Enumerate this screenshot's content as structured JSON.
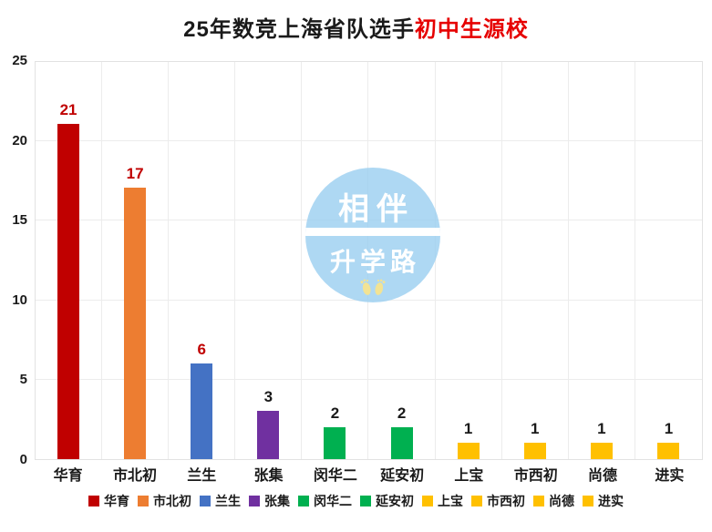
{
  "title": {
    "main": "25年数竞上海省队选手",
    "highlight": "初中生源校",
    "highlight_color": "#e60000"
  },
  "chart_data": {
    "type": "bar",
    "title": "25年数竞上海省队选手初中生源校",
    "categories": [
      "华育",
      "市北初",
      "兰生",
      "张集",
      "闵华二",
      "延安初",
      "上宝",
      "市西初",
      "尚德",
      "进实"
    ],
    "values": [
      21,
      17,
      6,
      3,
      2,
      2,
      1,
      1,
      1,
      1
    ],
    "bar_colors": [
      "#C00000",
      "#ED7D31",
      "#4472C4",
      "#7030A0",
      "#00B050",
      "#00B050",
      "#FFC000",
      "#FFC000",
      "#FFC000",
      "#FFC000"
    ],
    "value_label_colors": [
      "#C00000",
      "#C00000",
      "#C00000",
      "#1a1a1a",
      "#1a1a1a",
      "#1a1a1a",
      "#1a1a1a",
      "#1a1a1a",
      "#1a1a1a",
      "#1a1a1a"
    ],
    "xlabel": "",
    "ylabel": "",
    "ylim": [
      0,
      25
    ],
    "yticks": [
      0,
      5,
      10,
      15,
      20,
      25
    ],
    "grid": true,
    "legend_position": "bottom"
  },
  "legend": {
    "items": [
      {
        "label": "华育",
        "color": "#C00000"
      },
      {
        "label": "市北初",
        "color": "#ED7D31"
      },
      {
        "label": "兰生",
        "color": "#4472C4"
      },
      {
        "label": "张集",
        "color": "#7030A0"
      },
      {
        "label": "闵华二",
        "color": "#00B050"
      },
      {
        "label": "延安初",
        "color": "#00B050"
      },
      {
        "label": "上宝",
        "color": "#FFC000"
      },
      {
        "label": "市西初",
        "color": "#FFC000"
      },
      {
        "label": "尚德",
        "color": "#FFC000"
      },
      {
        "label": "进实",
        "color": "#FFC000"
      }
    ]
  },
  "watermark": {
    "line1": "相伴",
    "line2": "升学路",
    "circle_color": "rgba(154,206,240,0.8)",
    "footprints_color": "#f2e394",
    "footprints_icon": "footprints-icon"
  }
}
